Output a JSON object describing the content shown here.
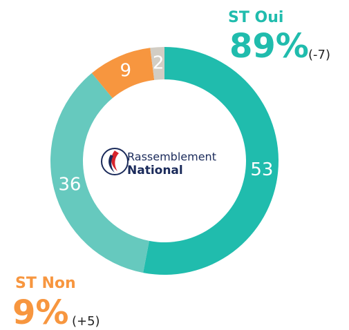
{
  "chart_data": {
    "type": "donut",
    "values": [
      53,
      36,
      9,
      2
    ],
    "colors": [
      "#20bcad",
      "#66c9be",
      "#f7963f",
      "#d2cdc4"
    ],
    "annotations": [
      "ST Oui",
      "89%",
      "(-7)",
      "ST Non",
      "9%",
      "(+5)"
    ],
    "logo": [
      "Rassemblement",
      "National"
    ]
  }
}
